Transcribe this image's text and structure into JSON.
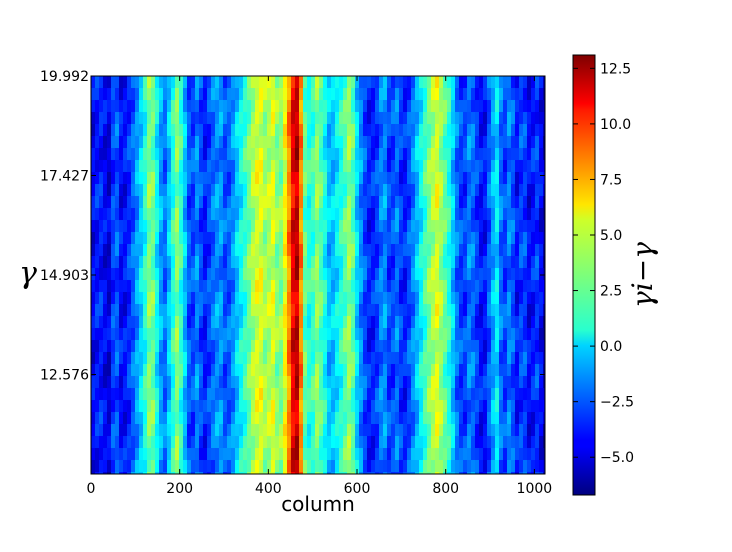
{
  "chart_data": {
    "type": "heatmap",
    "title": "",
    "xlabel": "column",
    "ylabel": "γ",
    "colorbar_label": "γi−γ",
    "xlim": [
      0,
      1024
    ],
    "x_ticks": [
      "0",
      "200",
      "400",
      "600",
      "800",
      "1000"
    ],
    "y_ticks": [
      "19.992",
      "17.427",
      "14.903",
      "12.576"
    ],
    "y_tick_positions_fraction_from_top": [
      0.0,
      0.25,
      0.5,
      0.75
    ],
    "colorbar_range": [
      -6.7,
      13.1
    ],
    "colorbar_ticks": [
      "12.5",
      "10.0",
      "7.5",
      "5.0",
      "2.5",
      "0.0",
      "−2.5",
      "−5.0"
    ],
    "colormap": "jet",
    "grid": false,
    "column_profile": [
      {
        "x": 0,
        "v": -4.5
      },
      {
        "x": 20,
        "v": -3.5
      },
      {
        "x": 40,
        "v": -5.0
      },
      {
        "x": 55,
        "v": -2.0
      },
      {
        "x": 70,
        "v": -4.5
      },
      {
        "x": 90,
        "v": -3.0
      },
      {
        "x": 105,
        "v": -1.0
      },
      {
        "x": 120,
        "v": 1.0
      },
      {
        "x": 135,
        "v": 4.0
      },
      {
        "x": 150,
        "v": 0.5
      },
      {
        "x": 165,
        "v": -2.5
      },
      {
        "x": 180,
        "v": 0.5
      },
      {
        "x": 195,
        "v": 3.5
      },
      {
        "x": 210,
        "v": 0.0
      },
      {
        "x": 225,
        "v": -3.5
      },
      {
        "x": 240,
        "v": -1.5
      },
      {
        "x": 255,
        "v": -4.0
      },
      {
        "x": 270,
        "v": -2.5
      },
      {
        "x": 290,
        "v": -1.0
      },
      {
        "x": 305,
        "v": -3.0
      },
      {
        "x": 320,
        "v": -1.5
      },
      {
        "x": 335,
        "v": 0.5
      },
      {
        "x": 350,
        "v": 2.0
      },
      {
        "x": 365,
        "v": 4.0
      },
      {
        "x": 380,
        "v": 5.5
      },
      {
        "x": 395,
        "v": 3.5
      },
      {
        "x": 410,
        "v": 5.0
      },
      {
        "x": 425,
        "v": 2.5
      },
      {
        "x": 440,
        "v": 6.0
      },
      {
        "x": 450,
        "v": 9.0
      },
      {
        "x": 460,
        "v": 12.5
      },
      {
        "x": 470,
        "v": 11.0
      },
      {
        "x": 480,
        "v": 3.0
      },
      {
        "x": 495,
        "v": 1.0
      },
      {
        "x": 510,
        "v": 3.5
      },
      {
        "x": 525,
        "v": 1.5
      },
      {
        "x": 540,
        "v": -1.0
      },
      {
        "x": 555,
        "v": 0.5
      },
      {
        "x": 570,
        "v": 2.0
      },
      {
        "x": 585,
        "v": 4.0
      },
      {
        "x": 600,
        "v": 0.0
      },
      {
        "x": 615,
        "v": -2.5
      },
      {
        "x": 630,
        "v": -4.0
      },
      {
        "x": 645,
        "v": -3.0
      },
      {
        "x": 660,
        "v": -1.0
      },
      {
        "x": 675,
        "v": -3.5
      },
      {
        "x": 690,
        "v": -2.0
      },
      {
        "x": 705,
        "v": -4.0
      },
      {
        "x": 720,
        "v": -2.5
      },
      {
        "x": 735,
        "v": -0.5
      },
      {
        "x": 750,
        "v": 1.5
      },
      {
        "x": 765,
        "v": 3.5
      },
      {
        "x": 780,
        "v": 5.0
      },
      {
        "x": 795,
        "v": 3.0
      },
      {
        "x": 810,
        "v": 1.0
      },
      {
        "x": 825,
        "v": -2.0
      },
      {
        "x": 840,
        "v": -3.5
      },
      {
        "x": 855,
        "v": -1.5
      },
      {
        "x": 870,
        "v": -3.0
      },
      {
        "x": 885,
        "v": -4.5
      },
      {
        "x": 900,
        "v": -2.0
      },
      {
        "x": 915,
        "v": 0.5
      },
      {
        "x": 930,
        "v": -3.5
      },
      {
        "x": 945,
        "v": -1.5
      },
      {
        "x": 960,
        "v": -4.0
      },
      {
        "x": 975,
        "v": -2.5
      },
      {
        "x": 990,
        "v": -4.5
      },
      {
        "x": 1005,
        "v": -3.0
      },
      {
        "x": 1024,
        "v": -5.5
      }
    ]
  }
}
